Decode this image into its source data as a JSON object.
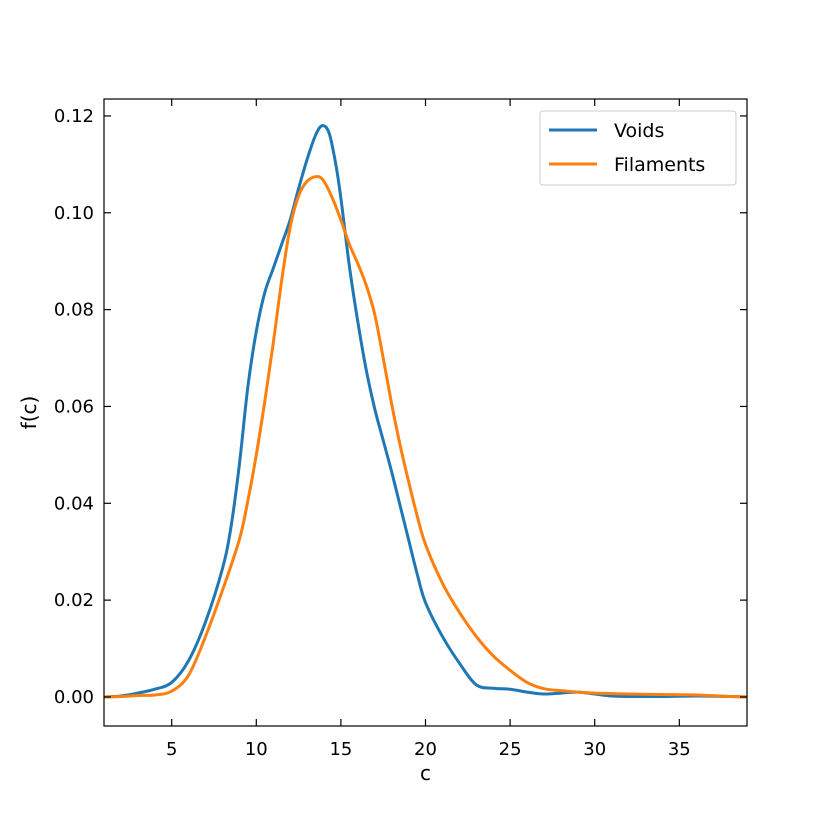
{
  "chart_data": {
    "type": "line",
    "title": "",
    "xlabel": "c",
    "ylabel": "f(c)",
    "xlim": [
      1,
      39
    ],
    "ylim": [
      -0.006,
      0.1235
    ],
    "xticks": [
      5,
      10,
      15,
      20,
      25,
      30,
      35
    ],
    "yticks": [
      0.0,
      0.02,
      0.04,
      0.06,
      0.08,
      0.1,
      0.12
    ],
    "xtick_labels": [
      "5",
      "10",
      "15",
      "20",
      "25",
      "30",
      "35"
    ],
    "ytick_labels": [
      "0.00",
      "0.02",
      "0.04",
      "0.06",
      "0.08",
      "0.10",
      "0.12"
    ],
    "grid": false,
    "legend_position": "top-right",
    "series": [
      {
        "name": "Voids",
        "color": "#1f77b4",
        "points": [
          [
            1,
            0.0
          ],
          [
            2,
            0.0002
          ],
          [
            3,
            0.0008
          ],
          [
            4,
            0.0016
          ],
          [
            5,
            0.003
          ],
          [
            6,
            0.0075
          ],
          [
            7,
            0.0155
          ],
          [
            8,
            0.0265
          ],
          [
            8.5,
            0.035
          ],
          [
            9,
            0.048
          ],
          [
            9.5,
            0.064
          ],
          [
            10,
            0.0755
          ],
          [
            10.5,
            0.0835
          ],
          [
            11,
            0.0885
          ],
          [
            11.5,
            0.0935
          ],
          [
            12,
            0.0985
          ],
          [
            12.5,
            0.105
          ],
          [
            13,
            0.111
          ],
          [
            13.5,
            0.116
          ],
          [
            13.9,
            0.118
          ],
          [
            14.3,
            0.1165
          ],
          [
            14.7,
            0.11
          ],
          [
            15,
            0.103
          ],
          [
            15.5,
            0.089
          ],
          [
            16,
            0.0775
          ],
          [
            16.5,
            0.0675
          ],
          [
            17,
            0.0595
          ],
          [
            17.5,
            0.053
          ],
          [
            18,
            0.0465
          ],
          [
            18.5,
            0.0395
          ],
          [
            19,
            0.0325
          ],
          [
            19.5,
            0.0255
          ],
          [
            20,
            0.0195
          ],
          [
            21,
            0.0125
          ],
          [
            22,
            0.007
          ],
          [
            23,
            0.0025
          ],
          [
            24,
            0.0018
          ],
          [
            25,
            0.0016
          ],
          [
            26,
            0.001
          ],
          [
            27,
            0.0006
          ],
          [
            28,
            0.0008
          ],
          [
            29,
            0.001
          ],
          [
            30,
            0.0006
          ],
          [
            31,
            0.0002
          ],
          [
            32,
            0.0001
          ],
          [
            34,
            0.0001
          ],
          [
            36,
            0.0002
          ],
          [
            38,
            0.0001
          ],
          [
            39,
            0.0
          ]
        ]
      },
      {
        "name": "Filaments",
        "color": "#ff7f0e",
        "points": [
          [
            1,
            0.0
          ],
          [
            2,
            0.0001
          ],
          [
            3,
            0.0003
          ],
          [
            4,
            0.0004
          ],
          [
            5,
            0.0012
          ],
          [
            6,
            0.0045
          ],
          [
            7,
            0.0125
          ],
          [
            8,
            0.022
          ],
          [
            9,
            0.0325
          ],
          [
            9.5,
            0.0405
          ],
          [
            10,
            0.05
          ],
          [
            10.5,
            0.061
          ],
          [
            11,
            0.073
          ],
          [
            11.5,
            0.086
          ],
          [
            12,
            0.097
          ],
          [
            12.5,
            0.1035
          ],
          [
            13,
            0.1065
          ],
          [
            13.6,
            0.1075
          ],
          [
            14,
            0.1065
          ],
          [
            14.5,
            0.103
          ],
          [
            15,
            0.0985
          ],
          [
            15.5,
            0.0935
          ],
          [
            16,
            0.0895
          ],
          [
            16.5,
            0.085
          ],
          [
            17,
            0.079
          ],
          [
            17.5,
            0.07
          ],
          [
            18,
            0.0605
          ],
          [
            18.5,
            0.052
          ],
          [
            19,
            0.0445
          ],
          [
            19.5,
            0.0375
          ],
          [
            20,
            0.0315
          ],
          [
            21,
            0.0235
          ],
          [
            22,
            0.0175
          ],
          [
            23,
            0.0125
          ],
          [
            24,
            0.0085
          ],
          [
            25,
            0.0055
          ],
          [
            26,
            0.003
          ],
          [
            27,
            0.0017
          ],
          [
            28,
            0.0013
          ],
          [
            29,
            0.001
          ],
          [
            30,
            0.0008
          ],
          [
            31,
            0.0007
          ],
          [
            32,
            0.0006
          ],
          [
            34,
            0.0005
          ],
          [
            36,
            0.0004
          ],
          [
            38,
            0.0001
          ],
          [
            39,
            0.0
          ]
        ]
      }
    ]
  }
}
